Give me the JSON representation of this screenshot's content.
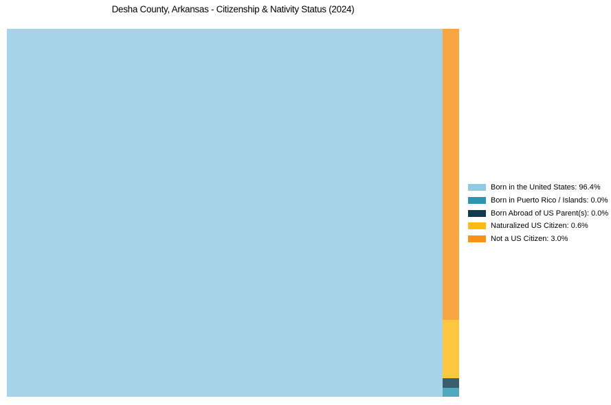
{
  "chart_data": {
    "type": "treemap",
    "title": "Desha County, Arkansas - Citizenship & Nativity Status (2024)",
    "legend_position": "right",
    "block_opacity": 0.82,
    "min_sliver_frac": 0.025,
    "categories": [
      {
        "key": "born-us",
        "label": "Born in the United States",
        "value_pct": 96.4,
        "display": "Born in the United States: 96.4%",
        "color": "#93C9E3"
      },
      {
        "key": "born-pr-islands",
        "label": "Born in Puerto Rico / Islands",
        "value_pct": 0.0,
        "display": "Born in Puerto Rico / Islands: 0.0%",
        "color": "#2C96B0"
      },
      {
        "key": "born-abroad",
        "label": "Born Abroad of US Parent(s)",
        "value_pct": 0.0,
        "display": "Born Abroad of US Parent(s): 0.0%",
        "color": "#0E3A50"
      },
      {
        "key": "naturalized",
        "label": "Naturalized US Citizen",
        "value_pct": 0.6,
        "display": "Naturalized US Citizen: 0.6%",
        "color": "#FDBA15"
      },
      {
        "key": "not-citizen",
        "label": "Not a US Citizen",
        "value_pct": 3.0,
        "display": "Not a US Citizen: 3.0%",
        "color": "#F89218"
      }
    ]
  }
}
